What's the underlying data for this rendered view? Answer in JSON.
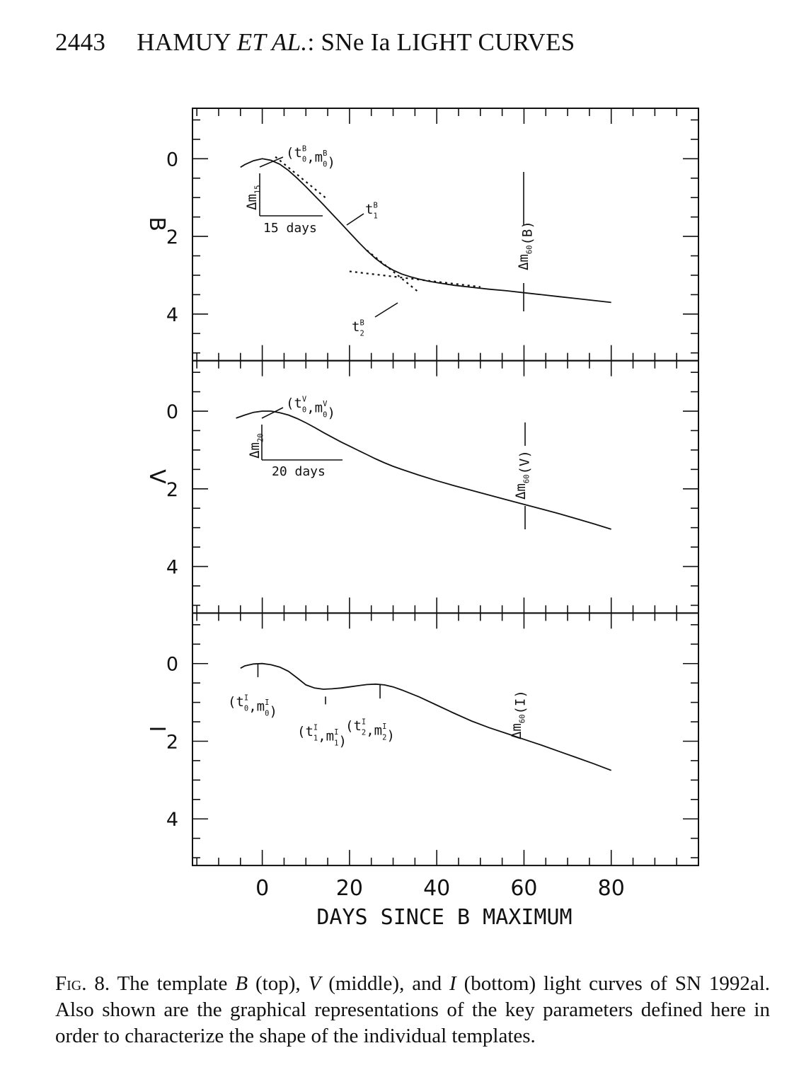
{
  "header": {
    "page": "2443",
    "authors": "HAMUY",
    "etal": "ET AL.",
    "colon": ":",
    "title": "SNe Ia LIGHT CURVES"
  },
  "chart_data": {
    "type": "line",
    "xlabel": "DAYS SINCE B MAXIMUM",
    "xlim": [
      -16,
      100
    ],
    "xticks": [
      0,
      20,
      40,
      60,
      80
    ],
    "x_minor_step": 5,
    "ylim": [
      5.2,
      -1.3
    ],
    "y_inverted": true,
    "yticks": [
      0,
      2,
      4
    ],
    "panels": [
      {
        "band": "B",
        "x": [
          -5,
          -4,
          -2,
          0,
          2,
          4,
          6,
          8,
          10,
          12,
          14,
          16,
          18,
          20,
          22,
          24,
          26,
          28,
          30,
          32,
          34,
          36,
          38,
          40,
          44,
          48,
          52,
          56,
          60,
          64,
          68,
          72,
          76,
          80
        ],
        "y": [
          0.22,
          0.15,
          0.05,
          0.0,
          0.04,
          0.14,
          0.3,
          0.5,
          0.72,
          0.95,
          1.18,
          1.42,
          1.66,
          1.9,
          2.14,
          2.37,
          2.57,
          2.74,
          2.87,
          2.97,
          3.04,
          3.1,
          3.15,
          3.19,
          3.26,
          3.31,
          3.36,
          3.4,
          3.45,
          3.5,
          3.55,
          3.6,
          3.65,
          3.7
        ],
        "labels": {
          "peak": "(t0B,m0B)",
          "dm15": "Δm15",
          "days15": "15 days",
          "t1": "t1B",
          "t2": "t2B",
          "dm60": "Δm60(B)"
        }
      },
      {
        "band": "V",
        "x": [
          -6,
          -4,
          -2,
          0,
          2,
          4,
          6,
          8,
          10,
          12,
          14,
          16,
          18,
          20,
          22,
          24,
          26,
          28,
          30,
          32,
          36,
          40,
          44,
          48,
          52,
          56,
          60,
          64,
          68,
          72,
          76,
          80
        ],
        "y": [
          0.18,
          0.1,
          0.03,
          0.0,
          0.0,
          0.04,
          0.1,
          0.19,
          0.3,
          0.42,
          0.55,
          0.67,
          0.79,
          0.9,
          1.01,
          1.12,
          1.23,
          1.33,
          1.42,
          1.5,
          1.65,
          1.79,
          1.92,
          2.04,
          2.16,
          2.28,
          2.4,
          2.52,
          2.64,
          2.77,
          2.9,
          3.04
        ],
        "labels": {
          "peak": "(t0V,m0V)",
          "dm20": "Δm20",
          "days20": "20 days",
          "dm60": "Δm60(V)"
        }
      },
      {
        "band": "I",
        "x": [
          -5,
          -4,
          -2,
          0,
          2,
          4,
          6,
          8,
          10,
          12,
          14,
          16,
          18,
          20,
          22,
          24,
          26,
          28,
          30,
          32,
          36,
          40,
          44,
          48,
          52,
          56,
          60,
          64,
          68,
          72,
          76,
          80
        ],
        "y": [
          0.12,
          0.06,
          0.01,
          0.0,
          0.03,
          0.09,
          0.2,
          0.37,
          0.55,
          0.63,
          0.66,
          0.65,
          0.63,
          0.6,
          0.57,
          0.54,
          0.53,
          0.55,
          0.6,
          0.68,
          0.86,
          1.07,
          1.28,
          1.48,
          1.65,
          1.8,
          1.95,
          2.1,
          2.26,
          2.42,
          2.58,
          2.75
        ],
        "labels": {
          "peak": "(t0I,m0I)",
          "min": "(t1I,m1I)",
          "second": "(t2I,m2I)",
          "dm60": "Δm60(I)"
        }
      }
    ]
  },
  "caption": {
    "fig": "Fig. 8.",
    "pre": " The template ",
    "b": "B",
    "b_note": " (top), ",
    "v": "V",
    "v_note": " (middle), and ",
    "i": "I",
    "rest": " (bottom) light curves of SN 1992al. Also shown are the graphical representations of the key parameters defined here in order to characterize the shape of the individual templates."
  }
}
